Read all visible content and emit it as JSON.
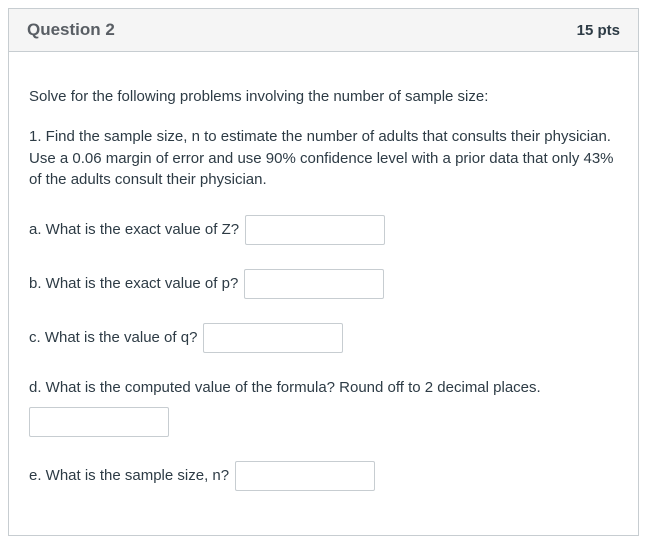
{
  "header": {
    "title": "Question 2",
    "points": "15 pts"
  },
  "body": {
    "intro": "Solve for the following problems involving the number of sample size:",
    "problem": "1. Find the sample size, n to estimate the number of adults that consults their physician. Use a 0.06 margin of error and use 90% confidence level with a prior data that only 43% of the adults consult their physician.",
    "sub_questions": {
      "a": "a. What is the exact value of Z?",
      "b": "b. What is the exact value of p?",
      "c": "c. What is the value of q?",
      "d": "d. What is the computed value of the formula? Round off to 2 decimal places.",
      "e": "e. What is the sample size, n?"
    }
  },
  "inputs": {
    "a_value": "",
    "b_value": "",
    "c_value": "",
    "d_value": "",
    "e_value": ""
  }
}
